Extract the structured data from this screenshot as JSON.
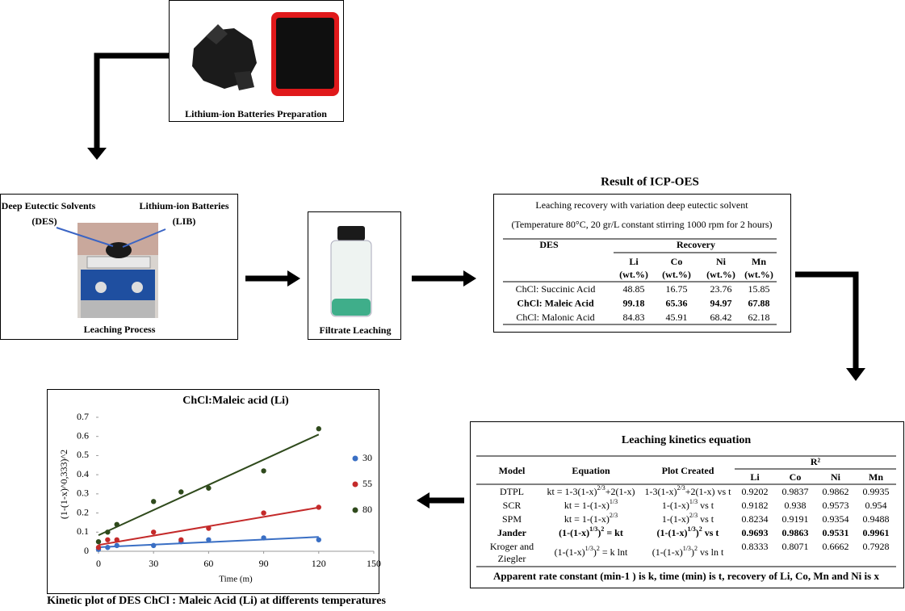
{
  "preparation": {
    "caption": "Lithium-ion Batteries Preparation"
  },
  "leaching": {
    "des_label": [
      "Deep Eutectic Solvents",
      "(DES)"
    ],
    "lib_label": [
      "Lithium-ion Batteries",
      "(LIB)"
    ],
    "caption": "Leaching Process"
  },
  "filtrate": {
    "caption": "Filtrate Leaching"
  },
  "icp": {
    "title": "Result of ICP-OES",
    "subtitle": "Leaching recovery with variation deep eutectic solvent",
    "conditions": "(Temperature 80°C, 20 gr/L constant stirring 1000 rpm for 2 hours)",
    "des_header": "DES",
    "recovery_header": "Recovery",
    "columns": [
      [
        "Li",
        "(wt.%)"
      ],
      [
        "Co",
        "(wt.%)"
      ],
      [
        "Ni",
        "(wt.%)"
      ],
      [
        "Mn",
        "(wt.%)"
      ]
    ],
    "rows": [
      {
        "name": "ChCl: Succinic Acid",
        "values": [
          48.85,
          16.75,
          23.76,
          15.85
        ],
        "bold": false
      },
      {
        "name": "ChCl: Maleic Acid",
        "values": [
          99.18,
          65.36,
          94.97,
          67.88
        ],
        "bold": true
      },
      {
        "name": "ChCl: Malonic Acid",
        "values": [
          84.83,
          45.91,
          68.42,
          62.18
        ],
        "bold": false
      }
    ]
  },
  "kinetics": {
    "title": "Leaching kinetics equation",
    "headers": [
      "Model",
      "Equation",
      "Plot Created"
    ],
    "r2_header": "R²",
    "r2_columns": [
      "Li",
      "Co",
      "Ni",
      "Mn"
    ],
    "rows": [
      {
        "model": [
          "DTPL"
        ],
        "equation": [
          "kt = 1-3(1-x)",
          "2/3",
          "+2(1-x)"
        ],
        "plot": [
          "1-3(1-x)",
          "2/3",
          "+2(1-x) vs t"
        ],
        "r2": [
          0.9202,
          0.9837,
          0.9862,
          0.9935
        ],
        "bold": false
      },
      {
        "model": [
          "SCR"
        ],
        "equation": [
          "kt = 1-(1-x)",
          "1/3"
        ],
        "plot": [
          "1-(1-x)",
          "1/3",
          " vs t"
        ],
        "r2": [
          0.9182,
          0.938,
          0.9573,
          0.954
        ],
        "bold": false
      },
      {
        "model": [
          "SPM"
        ],
        "equation": [
          "kt = 1-(1-x)",
          "2/3"
        ],
        "plot": [
          "1-(1-x)",
          "2/3",
          " vs t"
        ],
        "r2": [
          0.8234,
          0.9191,
          0.9354,
          0.9488
        ],
        "bold": false
      },
      {
        "model": [
          "Jander"
        ],
        "equation": [
          "(1-(1-x)",
          "1/3",
          ")",
          "2",
          " = kt"
        ],
        "plot": [
          "(1-(1-x)",
          "1/3",
          ")",
          "2",
          " vs t"
        ],
        "r2": [
          0.9693,
          0.9863,
          0.9531,
          0.9961
        ],
        "bold": true
      },
      {
        "model": [
          "Kroger and",
          "Ziegler"
        ],
        "equation": [
          "(1-(1-x)",
          "1/3",
          ")",
          "2",
          " = k lnt"
        ],
        "plot": [
          "(1-(1-x)",
          "1/3",
          ")",
          "2",
          " vs ln t"
        ],
        "r2": [
          0.8333,
          0.8071,
          0.6662,
          0.7928
        ],
        "bold": false
      }
    ],
    "footer": "Apparent rate constant (min-1 ) is k, time (min) is t, recovery of Li, Co, Mn and Ni is x"
  },
  "chart_data": {
    "type": "scatter",
    "title": "ChCl:Maleic acid (Li)",
    "caption": "Kinetic plot of DES ChCl : Maleic Acid (Li) at differents temperatures",
    "x_label": "Time (m)",
    "y_label": "(1-(1-x)^0,333)^2",
    "x": [
      0,
      5,
      10,
      30,
      45,
      60,
      90,
      120
    ],
    "series": [
      {
        "name": "30",
        "color": "#3a6fc4",
        "values": [
          0.01,
          0.02,
          0.03,
          0.03,
          0.05,
          0.06,
          0.07,
          0.06
        ]
      },
      {
        "name": "55",
        "color": "#c42a2a",
        "values": [
          0.02,
          0.06,
          0.06,
          0.1,
          0.06,
          0.12,
          0.2,
          0.23
        ]
      },
      {
        "name": "80",
        "color": "#2f4a1c",
        "values": [
          0.05,
          0.1,
          0.14,
          0.26,
          0.31,
          0.33,
          0.42,
          0.64
        ]
      }
    ],
    "trendline": true,
    "xlim": [
      0,
      150
    ],
    "xticks": [
      0,
      30,
      60,
      90,
      120,
      150
    ],
    "ylim": [
      0,
      0.7
    ],
    "yticks": [
      0,
      0.1,
      0.2,
      0.3,
      0.4,
      0.5,
      0.6,
      0.7
    ]
  }
}
